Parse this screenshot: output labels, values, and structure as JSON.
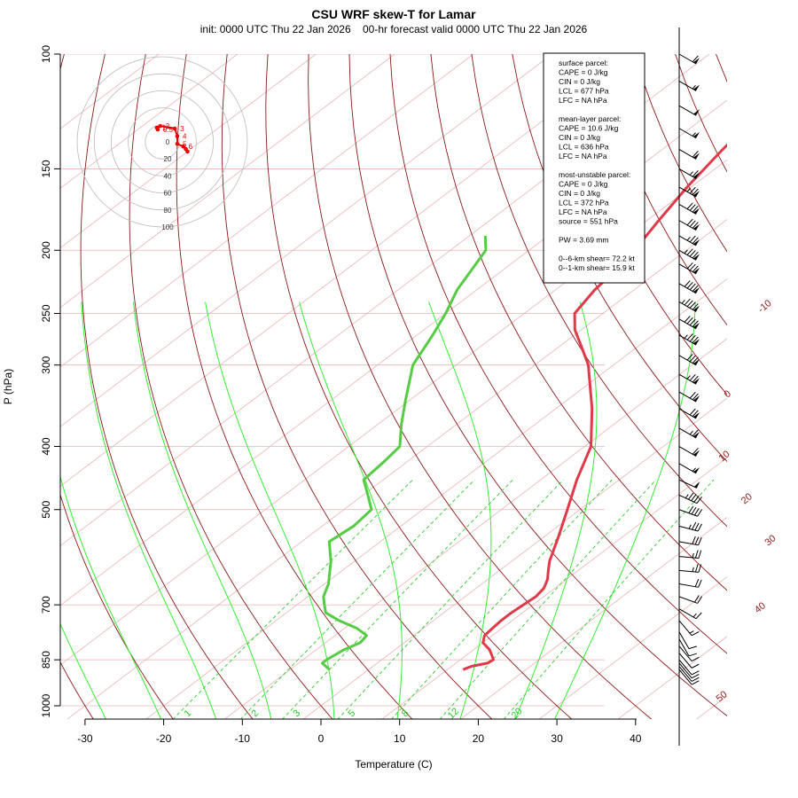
{
  "chart_data": {
    "type": "skew-t",
    "title": "CSU WRF skew-T for Lamar",
    "subtitle": "init: 0000 UTC Thu 22 Jan 2026    00-hr forecast valid 0000 UTC Thu 22 Jan 2026",
    "xlabel": "Temperature (C)",
    "ylabel": "P (hPa)",
    "pressure_ticks": [
      100,
      150,
      200,
      250,
      300,
      400,
      500,
      700,
      850,
      1000
    ],
    "temperature_ticks": [
      -30,
      -20,
      -10,
      0,
      10,
      20,
      30,
      40
    ],
    "xlim": [
      -33,
      44
    ],
    "ylim": [
      1050,
      100
    ],
    "isotherm_labels": [
      -10,
      0,
      10,
      20,
      30,
      40,
      50
    ],
    "mixing_ratio_labels": [
      "1",
      "2",
      "3",
      "5",
      "8",
      "12",
      "20"
    ],
    "temperature_profile": [
      {
        "p": 880,
        "t": 12.0
      },
      {
        "p": 870,
        "t": 12.5
      },
      {
        "p": 860,
        "t": 14.0
      },
      {
        "p": 850,
        "t": 14.2
      },
      {
        "p": 840,
        "t": 13.5
      },
      {
        "p": 820,
        "t": 12.0
      },
      {
        "p": 800,
        "t": 10.0
      },
      {
        "p": 780,
        "t": 9.0
      },
      {
        "p": 760,
        "t": 8.8
      },
      {
        "p": 740,
        "t": 8.6
      },
      {
        "p": 720,
        "t": 8.6
      },
      {
        "p": 700,
        "t": 8.8
      },
      {
        "p": 680,
        "t": 9.0
      },
      {
        "p": 660,
        "t": 8.6
      },
      {
        "p": 640,
        "t": 7.6
      },
      {
        "p": 620,
        "t": 6.2
      },
      {
        "p": 600,
        "t": 4.8
      },
      {
        "p": 550,
        "t": 1.8
      },
      {
        "p": 500,
        "t": -1.6
      },
      {
        "p": 450,
        "t": -5.4
      },
      {
        "p": 400,
        "t": -9.2
      },
      {
        "p": 350,
        "t": -15.4
      },
      {
        "p": 300,
        "t": -23.2
      },
      {
        "p": 280,
        "t": -27.4
      },
      {
        "p": 265,
        "t": -30.8
      },
      {
        "p": 250,
        "t": -33.6
      },
      {
        "p": 230,
        "t": -35.0
      },
      {
        "p": 215,
        "t": -35.6
      },
      {
        "p": 200,
        "t": -36.6
      },
      {
        "p": 180,
        "t": -38.5
      },
      {
        "p": 160,
        "t": -40.5
      },
      {
        "p": 140,
        "t": -42.3
      },
      {
        "p": 120,
        "t": -44.0
      },
      {
        "p": 110,
        "t": -45.0
      }
    ],
    "dewpoint_profile": [
      {
        "p": 880,
        "t": -5.0
      },
      {
        "p": 860,
        "t": -7.0
      },
      {
        "p": 850,
        "t": -7.0
      },
      {
        "p": 820,
        "t": -6.5
      },
      {
        "p": 800,
        "t": -5.6
      },
      {
        "p": 780,
        "t": -6.0
      },
      {
        "p": 760,
        "t": -8.5
      },
      {
        "p": 740,
        "t": -12.0
      },
      {
        "p": 720,
        "t": -15.0
      },
      {
        "p": 700,
        "t": -16.5
      },
      {
        "p": 680,
        "t": -18.0
      },
      {
        "p": 650,
        "t": -19.5
      },
      {
        "p": 600,
        "t": -23.0
      },
      {
        "p": 560,
        "t": -26.5
      },
      {
        "p": 530,
        "t": -26.0
      },
      {
        "p": 500,
        "t": -26.5
      },
      {
        "p": 470,
        "t": -30.0
      },
      {
        "p": 450,
        "t": -32.5
      },
      {
        "p": 420,
        "t": -33.0
      },
      {
        "p": 400,
        "t": -33.5
      },
      {
        "p": 370,
        "t": -37.0
      },
      {
        "p": 340,
        "t": -40.5
      },
      {
        "p": 300,
        "t": -45.5
      },
      {
        "p": 270,
        "t": -48.0
      },
      {
        "p": 250,
        "t": -50.0
      },
      {
        "p": 230,
        "t": -52.5
      },
      {
        "p": 200,
        "t": -55.5
      },
      {
        "p": 190,
        "t": -58.0
      }
    ],
    "hodograph": {
      "ring_labels": [
        "0",
        "20",
        "40",
        "60",
        "80",
        "100"
      ],
      "points": [
        {
          "label": "0.5",
          "u": 3,
          "v": -1
        },
        {
          "label": "1",
          "u": 2,
          "v": 1
        },
        {
          "label": "2",
          "u": 6,
          "v": 3
        },
        {
          "label": "3",
          "u": 23,
          "v": 0
        },
        {
          "label": "4",
          "u": 26,
          "v": -9
        },
        {
          "label": "5",
          "u": 26,
          "v": -18
        },
        {
          "label": "6",
          "u": 33,
          "v": -21
        },
        {
          "label": "",
          "u": 36,
          "v": -24
        },
        {
          "label": "",
          "u": 38,
          "v": -27
        }
      ]
    },
    "wind_barbs": [
      {
        "p": 100,
        "speed": 60,
        "dir": 300
      },
      {
        "p": 110,
        "speed": 55,
        "dir": 300
      },
      {
        "p": 120,
        "speed": 50,
        "dir": 300
      },
      {
        "p": 130,
        "speed": 55,
        "dir": 300
      },
      {
        "p": 140,
        "speed": 60,
        "dir": 300
      },
      {
        "p": 150,
        "speed": 65,
        "dir": 300
      },
      {
        "p": 160,
        "speed": 75,
        "dir": 300
      },
      {
        "p": 170,
        "speed": 80,
        "dir": 300
      },
      {
        "p": 180,
        "speed": 80,
        "dir": 300
      },
      {
        "p": 190,
        "speed": 75,
        "dir": 300
      },
      {
        "p": 200,
        "speed": 85,
        "dir": 300
      },
      {
        "p": 210,
        "speed": 80,
        "dir": 300
      },
      {
        "p": 225,
        "speed": 90,
        "dir": 300
      },
      {
        "p": 240,
        "speed": 95,
        "dir": 300
      },
      {
        "p": 255,
        "speed": 90,
        "dir": 300
      },
      {
        "p": 270,
        "speed": 85,
        "dir": 300
      },
      {
        "p": 290,
        "speed": 80,
        "dir": 300
      },
      {
        "p": 310,
        "speed": 75,
        "dir": 300
      },
      {
        "p": 330,
        "speed": 70,
        "dir": 300
      },
      {
        "p": 350,
        "speed": 70,
        "dir": 300
      },
      {
        "p": 375,
        "speed": 65,
        "dir": 300
      },
      {
        "p": 400,
        "speed": 60,
        "dir": 300
      },
      {
        "p": 425,
        "speed": 55,
        "dir": 300
      },
      {
        "p": 450,
        "speed": 50,
        "dir": 295
      },
      {
        "p": 475,
        "speed": 45,
        "dir": 295
      },
      {
        "p": 500,
        "speed": 40,
        "dir": 290
      },
      {
        "p": 530,
        "speed": 35,
        "dir": 285
      },
      {
        "p": 560,
        "speed": 30,
        "dir": 280
      },
      {
        "p": 590,
        "speed": 25,
        "dir": 275
      },
      {
        "p": 620,
        "speed": 25,
        "dir": 275
      },
      {
        "p": 650,
        "speed": 20,
        "dir": 280
      },
      {
        "p": 680,
        "speed": 20,
        "dir": 290
      },
      {
        "p": 710,
        "speed": 15,
        "dir": 300
      },
      {
        "p": 740,
        "speed": 15,
        "dir": 320
      },
      {
        "p": 770,
        "speed": 10,
        "dir": 330
      },
      {
        "p": 790,
        "speed": 10,
        "dir": 330
      },
      {
        "p": 810,
        "speed": 10,
        "dir": 320
      },
      {
        "p": 830,
        "speed": 10,
        "dir": 320
      },
      {
        "p": 850,
        "speed": 10,
        "dir": 320
      },
      {
        "p": 860,
        "speed": 10,
        "dir": 320
      },
      {
        "p": 870,
        "speed": 10,
        "dir": 320
      },
      {
        "p": 880,
        "speed": 10,
        "dir": 320
      }
    ]
  },
  "info_box": {
    "lines": [
      "surface parcel:",
      "CAPE = 0 J/kg",
      "CIN = 0 J/kg",
      "LCL = 677 hPa",
      "LFC = NA hPa",
      "",
      "mean-layer parcel:",
      "CAPE = 10.6 J/kg",
      "CIN = 0 J/kg",
      "LCL = 636 hPa",
      "LFC = NA hPa",
      "",
      "most-unstable parcel:",
      "CAPE = 0 J/kg",
      "CIN = 0 J/kg",
      "LCL = 372 hPa",
      "LFC = NA hPa",
      "source = 551 hPa",
      "",
      "PW =  3.69 mm",
      "",
      "0--6-km shear= 72.2 kt",
      "0--1-km shear= 15.9 kt"
    ]
  },
  "colors": {
    "isotherm": "#a52a2a",
    "isotherm_light": "#e8b4b4",
    "dry_adiabat": "#8b1a1a",
    "moist_adiabat": "#33ee33",
    "mixing_ratio": "#33cc33",
    "temperature": "#e03a4a",
    "dewpoint": "#55cc44",
    "hodograph": "#ee0000"
  }
}
